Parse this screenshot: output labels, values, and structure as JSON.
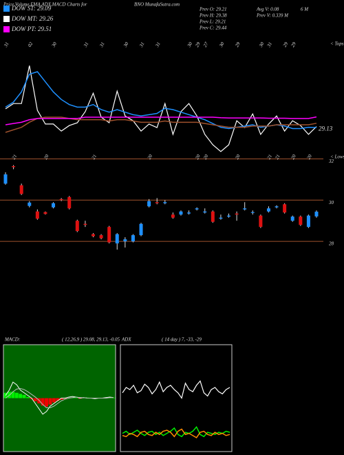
{
  "header": {
    "title": "Price,Volume,EMA,ADX,MACD Charts for",
    "site": "BNO MunafaSutra.com",
    "legend": [
      {
        "label": "DOW ST: 29.09",
        "color": "#1e90ff"
      },
      {
        "label": "DOW MT: 29.26",
        "color": "#ffffff"
      },
      {
        "label": "DOW PT: 29.51",
        "color": "#ff00ff"
      }
    ],
    "stats": [
      "Prev  O: 29.21",
      "Prev  H: 29.38",
      "Prev  L: 29.21",
      "Prev  C: 29.44",
      "Avg V: 0.08",
      "6  M",
      "Prev  V: 0.339 M"
    ]
  },
  "chart_data": [
    {
      "type": "line",
      "corner_label": "< Tops",
      "annotation": "29.13",
      "ylim": [
        28,
        32.5
      ],
      "categories": [
        "31",
        null,
        null,
        "02",
        null,
        null,
        "30",
        null,
        null,
        null,
        "31",
        null,
        "31",
        null,
        null,
        "30",
        null,
        "31",
        null,
        "31",
        null,
        null,
        null,
        "30",
        "29",
        "27",
        null,
        "30",
        null,
        "29",
        null,
        null,
        "30",
        "31",
        null,
        "29",
        "29",
        null,
        null,
        null
      ],
      "series": [
        {
          "name": "price",
          "color": "#ffffff",
          "values": [
            29.83,
            30.04,
            30.04,
            31.54,
            29.77,
            29.23,
            29.23,
            28.95,
            29.17,
            29.28,
            29.72,
            30.45,
            29.5,
            29.28,
            30.53,
            29.55,
            29.36,
            28.95,
            29.23,
            29.09,
            30.04,
            28.82,
            29.72,
            30.04,
            29.55,
            28.82,
            28.41,
            28.14,
            28.41,
            29.36,
            29.09,
            29.63,
            28.82,
            29.23,
            29.55,
            28.95,
            29.36,
            29.17,
            28.82,
            29.13
          ]
        },
        {
          "name": "short",
          "color": "#1e90ff",
          "values": [
            29.9,
            30.1,
            30.5,
            31.2,
            31.3,
            30.9,
            30.5,
            30.2,
            30.0,
            29.9,
            29.9,
            30.0,
            29.8,
            29.7,
            29.8,
            29.7,
            29.6,
            29.55,
            29.6,
            29.65,
            29.85,
            29.8,
            29.7,
            29.6,
            29.5,
            29.4,
            29.25,
            29.1,
            29.05,
            29.1,
            29.15,
            29.2,
            29.1,
            29.15,
            29.2,
            29.15,
            29.05,
            29.05,
            29.1,
            29.09
          ]
        },
        {
          "name": "mid",
          "color": "#a0522d",
          "values": [
            28.9,
            29.0,
            29.1,
            29.3,
            29.45,
            29.5,
            29.5,
            29.5,
            29.45,
            29.4,
            29.4,
            29.4,
            29.4,
            29.35,
            29.4,
            29.4,
            29.35,
            29.3,
            29.3,
            29.3,
            29.35,
            29.3,
            29.3,
            29.3,
            29.3,
            29.25,
            29.2,
            29.15,
            29.1,
            29.1,
            29.1,
            29.15,
            29.15,
            29.15,
            29.2,
            29.2,
            29.2,
            29.2,
            29.2,
            29.26
          ]
        },
        {
          "name": "long",
          "color": "#ff00ff",
          "values": [
            29.2,
            29.25,
            29.3,
            29.4,
            29.45,
            29.45,
            29.45,
            29.45,
            29.45,
            29.45,
            29.5,
            29.5,
            29.5,
            29.5,
            29.5,
            29.5,
            29.5,
            29.5,
            29.5,
            29.5,
            29.5,
            29.5,
            29.5,
            29.5,
            29.5,
            29.5,
            29.5,
            29.48,
            29.47,
            29.47,
            29.47,
            29.47,
            29.47,
            29.46,
            29.46,
            29.46,
            29.45,
            29.45,
            29.45,
            29.51
          ]
        }
      ]
    },
    {
      "type": "candlestick",
      "corner_label": "< Lows",
      "ylim": [
        27,
        32.05
      ],
      "yticks": [
        28,
        30,
        32
      ],
      "up_color": "#1e90ff",
      "down_color": "#dd1111",
      "grid_color": "#a0522d",
      "categories": [
        null,
        "21",
        null,
        null,
        null,
        "20",
        null,
        null,
        null,
        null,
        null,
        "21",
        null,
        null,
        null,
        null,
        null,
        null,
        "20",
        null,
        null,
        null,
        null,
        null,
        "20",
        "20",
        null,
        null,
        null,
        "20",
        null,
        null,
        null,
        "21",
        "21",
        null,
        "20",
        null,
        "20",
        null
      ],
      "open": [
        30.8,
        31.65,
        30.72,
        29.72,
        29.45,
        29.42,
        29.65,
        30.05,
        30.15,
        29.0,
        28.85,
        28.35,
        28.3,
        28.7,
        27.9,
        28.0,
        28.0,
        28.3,
        29.7,
        29.9,
        29.85,
        29.3,
        29.3,
        29.35,
        29.55,
        29.4,
        29.45,
        29.1,
        29.2,
        29.35,
        29.55,
        29.38,
        29.25,
        29.45,
        29.65,
        29.8,
        29.0,
        29.2,
        28.7,
        29.21
      ],
      "high": [
        31.35,
        31.7,
        30.8,
        29.95,
        29.55,
        29.45,
        29.9,
        30.1,
        30.2,
        29.05,
        29.0,
        28.4,
        28.35,
        28.75,
        28.4,
        28.2,
        28.35,
        28.9,
        30.05,
        30.1,
        30.0,
        29.4,
        29.5,
        29.5,
        29.65,
        29.6,
        29.5,
        29.3,
        29.35,
        29.45,
        29.9,
        29.5,
        29.3,
        29.7,
        29.75,
        29.85,
        29.25,
        29.25,
        29.3,
        29.5
      ],
      "low": [
        30.75,
        31.5,
        30.25,
        29.65,
        29.05,
        29.3,
        29.6,
        29.95,
        29.55,
        28.45,
        28.7,
        28.2,
        28.1,
        27.9,
        27.6,
        27.7,
        27.95,
        28.25,
        29.65,
        29.8,
        29.8,
        29.1,
        29.25,
        29.3,
        29.5,
        29.35,
        28.9,
        29.05,
        29.15,
        29.0,
        29.5,
        29.3,
        28.65,
        29.4,
        29.6,
        29.35,
        28.95,
        28.75,
        28.65,
        29.15
      ],
      "close": [
        31.25,
        31.6,
        30.3,
        29.88,
        29.1,
        29.33,
        29.85,
        30.0,
        29.6,
        28.5,
        28.8,
        28.25,
        28.15,
        27.95,
        28.35,
        28.1,
        28.3,
        28.85,
        29.95,
        29.85,
        29.9,
        29.15,
        29.45,
        29.4,
        29.6,
        29.45,
        28.95,
        29.15,
        29.25,
        29.3,
        29.6,
        29.42,
        28.7,
        29.6,
        29.7,
        29.4,
        29.2,
        28.8,
        29.25,
        29.44
      ]
    },
    {
      "type": "macd",
      "title": "MACD:",
      "params": "( 12,26,9 ) 29.08, 29.13, -0.05",
      "ylim": [
        -1,
        1
      ],
      "panel_color": "#006400",
      "positive_color": "#00ee00",
      "negative_color": "#ee0000",
      "histogram": [
        0.1,
        0.12,
        0.12,
        0.1,
        0.08,
        0.06,
        0.02,
        -0.02,
        -0.06,
        -0.1,
        -0.14,
        -0.16,
        -0.12,
        -0.08,
        -0.05,
        -0.03,
        -0.01,
        0.0,
        0.01,
        0.01,
        -0.01,
        0.0,
        0.01,
        0.0,
        -0.01,
        0,
        0,
        0,
        0.01,
        0.01
      ],
      "series": [
        {
          "name": "macd",
          "color": "#ffffff",
          "values": [
            0.05,
            0.15,
            0.3,
            0.25,
            0.15,
            0.1,
            0.05,
            0.0,
            -0.1,
            -0.2,
            -0.3,
            -0.25,
            -0.15,
            -0.1,
            -0.05,
            0.0,
            0.0,
            0.02,
            0.03,
            0.02,
            0.0,
            0.01,
            0.0,
            0.0,
            -0.01,
            0.0,
            0.0,
            0.01,
            0.02,
            0.01
          ]
        },
        {
          "name": "signal",
          "color": "#bbbbbb",
          "values": [
            0.0,
            0.05,
            0.12,
            0.17,
            0.18,
            0.16,
            0.12,
            0.07,
            0.02,
            -0.04,
            -0.12,
            -0.18,
            -0.18,
            -0.15,
            -0.1,
            -0.05,
            -0.02,
            0.0,
            0.01,
            0.02,
            0.01,
            0.01,
            0.0,
            0.0,
            0.0,
            0.0,
            0.0,
            0.0,
            0.01,
            0.01
          ]
        }
      ]
    },
    {
      "type": "line",
      "title": "ADX",
      "params": "( 14 day ) 7, -33, -29",
      "ylim": [
        0,
        100
      ],
      "panel_color": "#000000",
      "series": [
        {
          "name": "adx",
          "color": "#ffffff",
          "values": [
            55,
            60,
            58,
            62,
            55,
            57,
            63,
            60,
            54,
            58,
            65,
            56,
            60,
            62,
            58,
            55,
            50,
            64,
            58,
            56,
            62,
            66,
            55,
            52,
            58,
            60,
            56,
            54,
            58,
            60
          ]
        },
        {
          "name": "plus",
          "color": "#00ee00",
          "values": [
            17,
            19,
            16,
            18,
            20,
            17,
            15,
            18,
            19,
            16,
            18,
            15,
            17,
            19,
            22,
            16,
            14,
            18,
            17,
            19,
            23,
            16,
            14,
            18,
            17,
            16,
            18,
            17,
            19,
            18
          ]
        },
        {
          "name": "minus",
          "color": "#ff8c00",
          "values": [
            15,
            14,
            17,
            16,
            14,
            18,
            19,
            16,
            15,
            18,
            16,
            19,
            20,
            18,
            14,
            19,
            21,
            16,
            17,
            15,
            13,
            18,
            19,
            16,
            15,
            18,
            16,
            17,
            15,
            16
          ]
        }
      ]
    }
  ]
}
